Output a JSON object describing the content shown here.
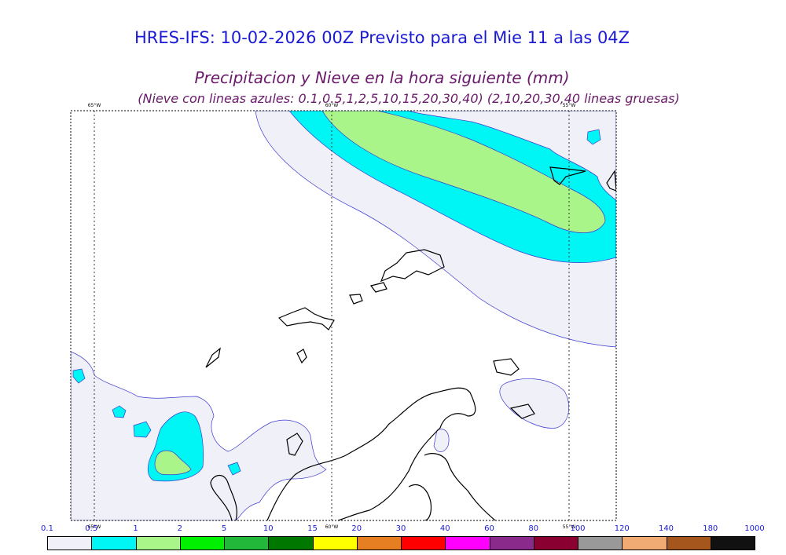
{
  "header": {
    "model_line": "HRES-IFS: 10-02-2026 00Z Previsto para el Mie 11 a las 04Z",
    "variable_line": "Precipitacion y Nieve en la hora siguiente (mm)",
    "snow_note": "(Nieve con lineas azules: 0.1,0.5,1,2,5,10,15,20,30,40)  (2,10,20,30,40 lineas gruesas)"
  },
  "map": {
    "meridians": [
      {
        "label_top": "65°W",
        "label_bottom": "65°W"
      },
      {
        "label_top": "60°W",
        "label_bottom": "60°W"
      },
      {
        "label_top": "55°W",
        "label_bottom": "55°W"
      }
    ]
  },
  "colorbar": {
    "labels": [
      "0.1",
      "0.5",
      "1",
      "2",
      "5",
      "10",
      "15",
      "20",
      "30",
      "40",
      "60",
      "80",
      "100",
      "120",
      "140",
      "180",
      "1000"
    ],
    "colors": [
      "#f0f0f8",
      "#00f5f5",
      "#aaf58a",
      "#00f000",
      "#22b83a",
      "#007800",
      "#ffff00",
      "#e67e22",
      "#ff0000",
      "#ff00ff",
      "#8a2a8a",
      "#8a0030",
      "#999999",
      "#f0aa74",
      "#a4561c",
      "#111111"
    ]
  }
}
